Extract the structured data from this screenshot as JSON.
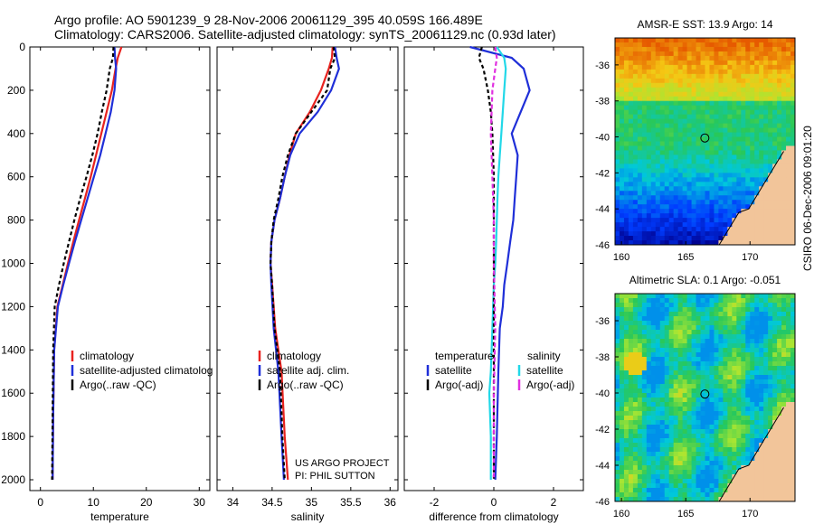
{
  "title_line1": "Argo profile: AO 5901239_9 28-Nov-2006 20061129_395 40.059S 166.489E",
  "title_line2": "Climatology: CARS2006. Satellite-adjusted climatology: synTS_20061129.nc (0.93d later)",
  "credit": "CSIRO 06-Dec-2006 09:01:20",
  "colors": {
    "climatology": "#e8231f",
    "satellite": "#1f2fd8",
    "argo": "#000000",
    "salinity_sat": "#22d8e8",
    "argo_adj": "#e030e0"
  },
  "chart_data": [
    {
      "type": "line",
      "xlabel": "temperature",
      "xlim": [
        -2,
        32
      ],
      "ylim": [
        0,
        2050
      ],
      "xticks": [
        0,
        10,
        20,
        30
      ],
      "yticks": [
        0,
        200,
        400,
        600,
        800,
        1000,
        1200,
        1400,
        1600,
        1800,
        2000
      ],
      "legend": [
        "climatology",
        "satellite-adjusted climatolog",
        "Argo(..raw -QC)"
      ],
      "series": [
        {
          "name": "climatology",
          "color": "climatology",
          "dash": "",
          "x": [
            15.3,
            14.6,
            14.2,
            13.5,
            12.5,
            11.5,
            10.5,
            9.5,
            8.4,
            7.3,
            6.2,
            5.2,
            4.2,
            3.2,
            2.6,
            2.4,
            2.3
          ],
          "y": [
            0,
            50,
            100,
            200,
            300,
            400,
            500,
            600,
            700,
            800,
            900,
            1000,
            1100,
            1200,
            1400,
            1700,
            2000
          ]
        },
        {
          "name": "satellite",
          "color": "satellite",
          "dash": "",
          "x": [
            14.0,
            14.1,
            14.3,
            14.0,
            13.3,
            12.3,
            11.3,
            10.1,
            8.9,
            7.7,
            6.5,
            5.4,
            4.3,
            3.3,
            2.6,
            2.4,
            2.3
          ],
          "y": [
            0,
            50,
            100,
            200,
            300,
            400,
            500,
            600,
            700,
            800,
            900,
            1000,
            1100,
            1200,
            1400,
            1700,
            2000
          ]
        },
        {
          "name": "Argo",
          "color": "argo",
          "dash": "4 3",
          "x": [
            13.8,
            13.7,
            13.1,
            12.5,
            11.6,
            10.8,
            9.8,
            8.7,
            7.5,
            6.4,
            5.4,
            4.4,
            3.5,
            2.7,
            2.4,
            2.3,
            2.2
          ],
          "y": [
            0,
            50,
            100,
            200,
            300,
            400,
            500,
            600,
            700,
            800,
            900,
            1000,
            1100,
            1200,
            1400,
            1700,
            2000
          ]
        }
      ]
    },
    {
      "type": "line",
      "xlabel": "salinity",
      "xlim": [
        33.8,
        36.1
      ],
      "ylim": [
        0,
        2050
      ],
      "xticks": [
        34,
        34.5,
        35,
        35.5,
        36
      ],
      "yticks": [
        0,
        200,
        400,
        600,
        800,
        1000,
        1200,
        1400,
        1600,
        1800,
        2000
      ],
      "legend": [
        "climatology",
        "satellite adj. clim.",
        "Argo(..raw -QC)"
      ],
      "annotation": [
        "US ARGO PROJECT",
        "PI: PHIL SUTTON"
      ],
      "series": [
        {
          "name": "climatology",
          "color": "climatology",
          "dash": "",
          "x": [
            35.27,
            35.26,
            35.22,
            35.12,
            34.98,
            34.8,
            34.72,
            34.66,
            34.6,
            34.53,
            34.49,
            34.48,
            34.5,
            34.54,
            34.62,
            34.66,
            34.7
          ],
          "y": [
            0,
            50,
            100,
            200,
            300,
            400,
            500,
            600,
            700,
            800,
            900,
            1000,
            1100,
            1300,
            1500,
            1800,
            2000
          ]
        },
        {
          "name": "satellite",
          "color": "satellite",
          "dash": "",
          "x": [
            35.3,
            35.32,
            35.35,
            35.25,
            35.08,
            34.85,
            34.73,
            34.66,
            34.6,
            34.53,
            34.49,
            34.48,
            34.49,
            34.52,
            34.58,
            34.62,
            34.65
          ],
          "y": [
            0,
            50,
            100,
            200,
            300,
            400,
            500,
            600,
            700,
            800,
            900,
            1000,
            1100,
            1300,
            1500,
            1800,
            2000
          ]
        },
        {
          "name": "Argo",
          "color": "argo",
          "dash": "4 3",
          "x": [
            35.28,
            35.3,
            35.24,
            35.2,
            35.0,
            34.8,
            34.7,
            34.63,
            34.58,
            34.52,
            34.49,
            34.48,
            34.5,
            34.53,
            34.6,
            34.63,
            34.66
          ],
          "y": [
            0,
            50,
            100,
            200,
            300,
            400,
            500,
            600,
            700,
            800,
            900,
            1000,
            1100,
            1300,
            1500,
            1800,
            2000
          ]
        }
      ]
    },
    {
      "type": "line",
      "xlabel": "difference from climatology",
      "xlim": [
        -3,
        3
      ],
      "ylim": [
        0,
        2050
      ],
      "xticks": [
        -2,
        0,
        2
      ],
      "yticks": [
        0,
        200,
        400,
        600,
        800,
        1000,
        1200,
        1400,
        1600,
        1800,
        2000
      ],
      "legend_left_title": "temperature",
      "legend_right_title": "salinity",
      "legend_left": [
        "satellite",
        "Argo(-adj)"
      ],
      "legend_right": [
        "satellite",
        "Argo(-adj)"
      ],
      "series": [
        {
          "name": "temperature satellite",
          "color": "satellite",
          "dash": "",
          "x": [
            -0.8,
            0.6,
            1.0,
            1.2,
            0.9,
            0.6,
            0.8,
            0.75,
            0.7,
            0.65,
            0.55,
            0.45,
            0.35,
            0.3,
            0.2,
            0.15,
            0.1,
            0.05
          ],
          "y": [
            0,
            50,
            100,
            200,
            300,
            400,
            500,
            600,
            700,
            800,
            900,
            1000,
            1100,
            1200,
            1300,
            1500,
            1800,
            2000
          ]
        },
        {
          "name": "salinity satellite",
          "color": "salinity_sat",
          "dash": "",
          "x": [
            0.1,
            0.35,
            0.4,
            0.35,
            0.3,
            0.25,
            0.2,
            0.15,
            0.12,
            0.1,
            0.08,
            0.05,
            0.0,
            -0.05,
            -0.1,
            -0.15,
            -0.1,
            -0.1
          ],
          "y": [
            0,
            50,
            100,
            200,
            300,
            400,
            500,
            600,
            700,
            800,
            900,
            1000,
            1100,
            1300,
            1500,
            1600,
            1800,
            2000
          ]
        },
        {
          "name": "temperature Argo",
          "color": "argo",
          "dash": "4 3",
          "x": [
            -0.4,
            -0.5,
            -0.35,
            -0.2,
            -0.1,
            -0.05,
            0.0,
            0.0,
            0.0,
            0.0,
            0.0,
            0.0,
            0.0
          ],
          "y": [
            0,
            50,
            100,
            200,
            300,
            400,
            600,
            800,
            1000,
            1300,
            1500,
            1800,
            2000
          ]
        },
        {
          "name": "salinity Argo",
          "color": "argo_adj",
          "dash": "5 3",
          "x": [
            0.05,
            0.1,
            0.05,
            -0.05,
            -0.1,
            -0.05,
            0.0,
            0.0,
            0.05,
            0.0,
            0.0,
            0.0
          ],
          "y": [
            0,
            50,
            100,
            200,
            400,
            600,
            800,
            1000,
            1300,
            1600,
            1800,
            2000
          ]
        }
      ]
    },
    {
      "type": "heatmap",
      "title": "AMSR-E SST: 13.9 Argo: 14",
      "xlim": [
        159.5,
        173.5
      ],
      "ylim": [
        -46,
        -34.5
      ],
      "xticks": [
        160,
        165,
        170
      ],
      "yticks": [
        -36,
        -38,
        -40,
        -42,
        -44,
        -46
      ],
      "marker": [
        166.489,
        -40.059
      ]
    },
    {
      "type": "heatmap",
      "title": "Altimetric SLA: 0.1 Argo: -0.051",
      "xlim": [
        159.5,
        173.5
      ],
      "ylim": [
        -46,
        -34.5
      ],
      "xticks": [
        160,
        165,
        170
      ],
      "yticks": [
        -36,
        -38,
        -40,
        -42,
        -44,
        -46
      ],
      "marker": [
        166.489,
        -40.059
      ]
    }
  ]
}
